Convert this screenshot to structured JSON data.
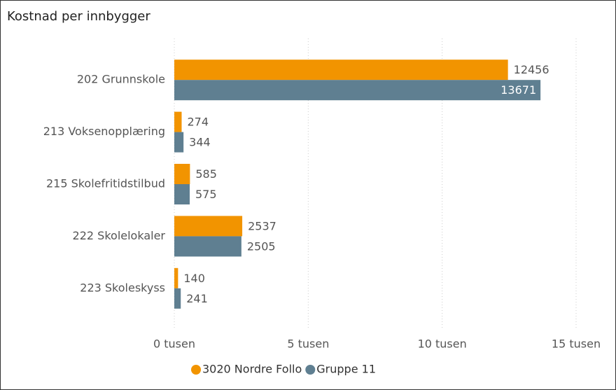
{
  "chart_data": {
    "type": "barh",
    "title": "Kostnad per innbygger",
    "categories": [
      "202 Grunnskole",
      "213 Voksenopplæring",
      "215 Skolefritidstilbud",
      "222 Skolelokaler",
      "223 Skoleskyss"
    ],
    "series": [
      {
        "name": "3020 Nordre Follo",
        "color": "#f29400",
        "values": [
          12456,
          274,
          585,
          2537,
          140
        ]
      },
      {
        "name": "Gruppe 11",
        "color": "#5f7f91",
        "values": [
          13671,
          344,
          575,
          2505,
          241
        ]
      }
    ],
    "xlim": [
      0,
      15000
    ],
    "xticks": [
      {
        "value": 0,
        "label": "0 tusen"
      },
      {
        "value": 5000,
        "label": "5 tusen"
      },
      {
        "value": 10000,
        "label": "10 tusen"
      },
      {
        "value": 15000,
        "label": "15 tusen"
      }
    ],
    "grid": true,
    "legend": "bottom"
  }
}
